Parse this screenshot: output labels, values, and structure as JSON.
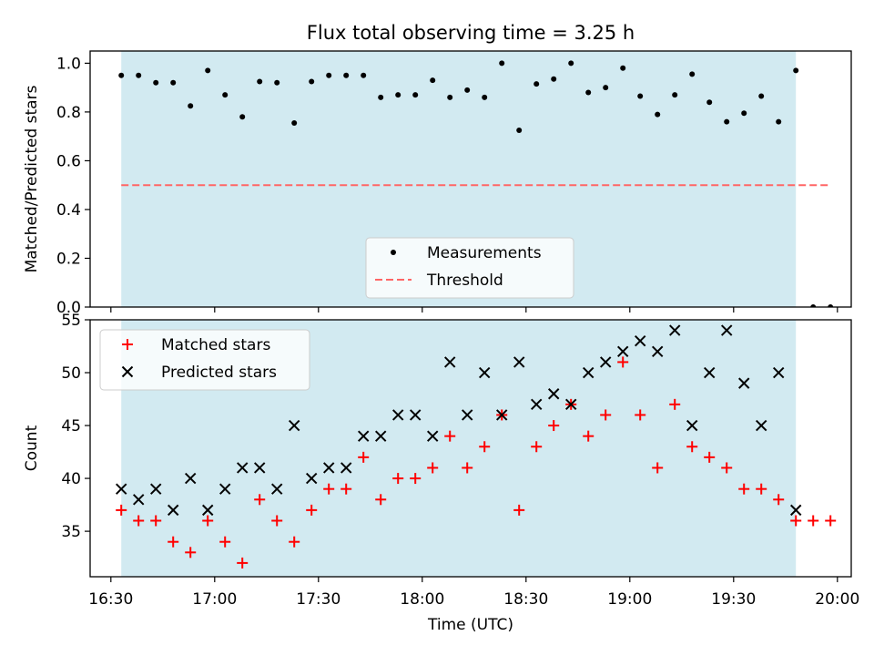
{
  "figure_title": "Flux total observing time = 3.25 h",
  "colors": {
    "observing_window": "#add8e6",
    "measurement": "#000000",
    "threshold": "#ff6666",
    "matched": "#ff0000",
    "predicted": "#000000"
  },
  "chart_data": [
    {
      "type": "scatter",
      "title": "",
      "xlabel": "",
      "ylabel": "Matched/Predicted stars",
      "xlim": [
        "16:24",
        "20:04"
      ],
      "ylim": [
        0,
        1.05
      ],
      "y_ticks": [
        "0.0",
        "0.2",
        "0.4",
        "0.6",
        "0.8",
        "1.0"
      ],
      "grid": false,
      "legend_position": "lower center",
      "shaded_region": {
        "start": "16:33",
        "end": "19:48"
      },
      "series": [
        {
          "name": "Measurements",
          "type": "scatter",
          "x": [
            "16:33",
            "16:38",
            "16:43",
            "16:48",
            "16:53",
            "16:58",
            "17:03",
            "17:08",
            "17:13",
            "17:18",
            "17:23",
            "17:28",
            "17:33",
            "17:38",
            "17:43",
            "17:48",
            "17:53",
            "17:58",
            "18:03",
            "18:08",
            "18:13",
            "18:18",
            "18:23",
            "18:28",
            "18:33",
            "18:38",
            "18:43",
            "18:48",
            "18:53",
            "18:58",
            "19:03",
            "19:08",
            "19:13",
            "19:18",
            "19:23",
            "19:28",
            "19:33",
            "19:38",
            "19:43",
            "19:48",
            "19:53",
            "19:58"
          ],
          "y": [
            0.95,
            0.95,
            0.92,
            0.92,
            0.825,
            0.97,
            0.87,
            0.78,
            0.925,
            0.92,
            0.755,
            0.925,
            0.95,
            0.95,
            0.95,
            0.86,
            0.87,
            0.87,
            0.93,
            0.86,
            0.89,
            0.86,
            1.0,
            0.725,
            0.915,
            0.935,
            1.0,
            0.88,
            0.9,
            0.98,
            0.865,
            0.79,
            0.87,
            0.955,
            0.84,
            0.76,
            0.795,
            0.865,
            0.76,
            0.97,
            0.0,
            0.0
          ]
        },
        {
          "name": "Threshold",
          "type": "line",
          "style": "dashed",
          "x": [
            "16:33",
            "19:58"
          ],
          "y": [
            0.5,
            0.5
          ]
        }
      ]
    },
    {
      "type": "scatter",
      "title": "",
      "xlabel": "Time (UTC)",
      "ylabel": "Count",
      "xlim": [
        "16:24",
        "20:04"
      ],
      "ylim": [
        30.7,
        55
      ],
      "x_ticks": [
        "16:30",
        "17:00",
        "17:30",
        "18:00",
        "18:30",
        "19:00",
        "19:30",
        "20:00"
      ],
      "y_ticks": [
        "35",
        "40",
        "45",
        "50",
        "55"
      ],
      "grid": false,
      "legend_position": "upper left",
      "shaded_region": {
        "start": "16:33",
        "end": "19:48"
      },
      "series": [
        {
          "name": "Matched stars",
          "marker": "+",
          "x": [
            "16:33",
            "16:38",
            "16:43",
            "16:48",
            "16:53",
            "16:58",
            "17:03",
            "17:08",
            "17:13",
            "17:18",
            "17:23",
            "17:28",
            "17:33",
            "17:38",
            "17:43",
            "17:48",
            "17:53",
            "17:58",
            "18:03",
            "18:08",
            "18:13",
            "18:18",
            "18:23",
            "18:28",
            "18:33",
            "18:38",
            "18:43",
            "18:48",
            "18:53",
            "18:58",
            "19:03",
            "19:08",
            "19:13",
            "19:18",
            "19:23",
            "19:28",
            "19:33",
            "19:38",
            "19:43",
            "19:48",
            "19:53",
            "19:58"
          ],
          "y": [
            37,
            36,
            36,
            34,
            33,
            36,
            34,
            32,
            38,
            36,
            34,
            37,
            39,
            39,
            42,
            38,
            40,
            40,
            41,
            44,
            41,
            43,
            46,
            37,
            43,
            45,
            47,
            44,
            46,
            51,
            46,
            41,
            47,
            43,
            42,
            41,
            39,
            39,
            38,
            36,
            36,
            36
          ]
        },
        {
          "name": "Predicted stars",
          "marker": "x",
          "x": [
            "16:33",
            "16:38",
            "16:43",
            "16:48",
            "16:53",
            "16:58",
            "17:03",
            "17:08",
            "17:13",
            "17:18",
            "17:23",
            "17:28",
            "17:33",
            "17:38",
            "17:43",
            "17:48",
            "17:53",
            "17:58",
            "18:03",
            "18:08",
            "18:13",
            "18:18",
            "18:23",
            "18:28",
            "18:33",
            "18:38",
            "18:43",
            "18:48",
            "18:53",
            "18:58",
            "19:03",
            "19:08",
            "19:13",
            "19:18",
            "19:23",
            "19:28",
            "19:33",
            "19:38",
            "19:43",
            "19:48"
          ],
          "y": [
            39,
            38,
            39,
            37,
            40,
            37,
            39,
            41,
            41,
            39,
            45,
            40,
            41,
            41,
            44,
            44,
            46,
            46,
            44,
            51,
            46,
            50,
            46,
            51,
            47,
            48,
            47,
            50,
            51,
            52,
            53,
            52,
            54,
            45,
            50,
            54,
            49,
            45,
            50,
            37
          ]
        }
      ]
    }
  ]
}
